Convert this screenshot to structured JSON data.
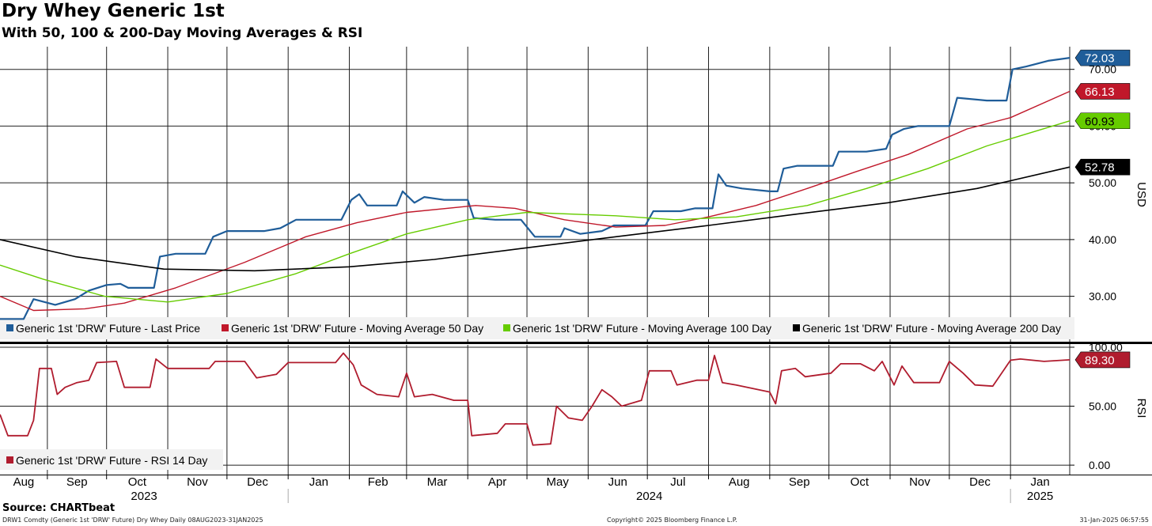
{
  "header": {
    "title": "Dry Whey Generic 1st",
    "subtitle": "With 50, 100 & 200-Day Moving Averages & RSI"
  },
  "footer": {
    "source": "Source: CHARTbeat",
    "left": "DRW1 Comdty (Generic 1st 'DRW' Future) Dry Whey  Daily 08AUG2023-31JAN2025",
    "center": "Copyright© 2025 Bloomberg Finance L.P.",
    "right": "31-Jan-2025 06:57:55"
  },
  "colors": {
    "last_price": "#1f5d99",
    "ma50": "#c0182a",
    "ma100": "#66cc00",
    "ma200": "#000000",
    "rsi": "#b01c2e"
  },
  "chart_data": [
    {
      "type": "line",
      "panel": "price",
      "ylabel": "USD",
      "ylim": [
        22,
        74
      ],
      "yticks": [
        "30.00",
        "40.00",
        "50.00",
        "60.00",
        "70.00"
      ],
      "grid": true,
      "x_months": [
        "Aug",
        "Sep",
        "Oct",
        "Nov",
        "Dec",
        "Jan",
        "Feb",
        "Mar",
        "Apr",
        "May",
        "Jun",
        "Jul",
        "Aug",
        "Sep",
        "Oct",
        "Nov",
        "Dec",
        "Jan"
      ],
      "x_years": [
        "2023",
        "2024",
        "2025"
      ],
      "legend": [
        "Generic 1st 'DRW' Future - Last Price",
        "Generic 1st 'DRW' Future - Moving Average 50 Day",
        "Generic 1st 'DRW' Future - Moving Average 100 Day",
        "Generic 1st 'DRW' Future - Moving Average 200 Day"
      ],
      "legend_position": "bottom",
      "series": [
        {
          "name": "Generic 1st 'DRW' Future - Last Price",
          "last_label": "72.03",
          "points": [
            [
              "2023-08-08",
              26.0
            ],
            [
              "2023-08-20",
              26.0
            ],
            [
              "2023-08-25",
              29.5
            ],
            [
              "2023-09-05",
              28.5
            ],
            [
              "2023-09-15",
              29.5
            ],
            [
              "2023-09-22",
              31.0
            ],
            [
              "2023-10-01",
              32.0
            ],
            [
              "2023-10-08",
              32.2
            ],
            [
              "2023-10-12",
              31.5
            ],
            [
              "2023-10-25",
              31.5
            ],
            [
              "2023-10-28",
              37.0
            ],
            [
              "2023-11-05",
              37.5
            ],
            [
              "2023-11-20",
              37.5
            ],
            [
              "2023-11-24",
              40.5
            ],
            [
              "2023-12-01",
              41.5
            ],
            [
              "2023-12-20",
              41.5
            ],
            [
              "2023-12-28",
              42.0
            ],
            [
              "2024-01-05",
              43.5
            ],
            [
              "2024-01-28",
              43.5
            ],
            [
              "2024-02-02",
              47.0
            ],
            [
              "2024-02-06",
              48.0
            ],
            [
              "2024-02-10",
              46.0
            ],
            [
              "2024-02-25",
              46.0
            ],
            [
              "2024-02-28",
              48.5
            ],
            [
              "2024-03-05",
              46.5
            ],
            [
              "2024-03-10",
              47.5
            ],
            [
              "2024-03-20",
              47.0
            ],
            [
              "2024-04-01",
              47.0
            ],
            [
              "2024-04-04",
              43.8
            ],
            [
              "2024-04-15",
              43.5
            ],
            [
              "2024-04-28",
              43.5
            ],
            [
              "2024-05-05",
              40.5
            ],
            [
              "2024-05-18",
              40.5
            ],
            [
              "2024-05-20",
              42.0
            ],
            [
              "2024-05-28",
              41.0
            ],
            [
              "2024-06-08",
              41.5
            ],
            [
              "2024-06-14",
              42.5
            ],
            [
              "2024-06-30",
              42.5
            ],
            [
              "2024-07-04",
              45.0
            ],
            [
              "2024-07-18",
              45.0
            ],
            [
              "2024-07-25",
              45.5
            ],
            [
              "2024-08-03",
              45.5
            ],
            [
              "2024-08-06",
              51.5
            ],
            [
              "2024-08-10",
              49.5
            ],
            [
              "2024-08-18",
              49.0
            ],
            [
              "2024-09-01",
              48.5
            ],
            [
              "2024-09-05",
              48.5
            ],
            [
              "2024-09-08",
              52.5
            ],
            [
              "2024-09-15",
              53.0
            ],
            [
              "2024-10-03",
              53.0
            ],
            [
              "2024-10-06",
              55.5
            ],
            [
              "2024-10-20",
              55.5
            ],
            [
              "2024-10-30",
              56.0
            ],
            [
              "2024-11-02",
              58.5
            ],
            [
              "2024-11-08",
              59.5
            ],
            [
              "2024-11-15",
              60.0
            ],
            [
              "2024-12-01",
              60.0
            ],
            [
              "2024-12-05",
              65.0
            ],
            [
              "2024-12-20",
              64.5
            ],
            [
              "2024-12-30",
              64.5
            ],
            [
              "2025-01-02",
              70.0
            ],
            [
              "2025-01-09",
              70.5
            ],
            [
              "2025-01-20",
              71.5
            ],
            [
              "2025-01-31",
              72.03
            ]
          ]
        },
        {
          "name": "Generic 1st 'DRW' Future - Moving Average 50 Day",
          "last_label": "66.13",
          "points": [
            [
              "2023-08-08",
              30.0
            ],
            [
              "2023-08-25",
              27.5
            ],
            [
              "2023-09-20",
              27.8
            ],
            [
              "2023-10-10",
              28.8
            ],
            [
              "2023-11-05",
              31.5
            ],
            [
              "2023-12-10",
              36.0
            ],
            [
              "2024-01-10",
              40.5
            ],
            [
              "2024-02-05",
              43.0
            ],
            [
              "2024-03-01",
              44.8
            ],
            [
              "2024-04-05",
              46.0
            ],
            [
              "2024-04-25",
              45.5
            ],
            [
              "2024-05-20",
              43.5
            ],
            [
              "2024-06-15",
              42.2
            ],
            [
              "2024-07-10",
              42.5
            ],
            [
              "2024-08-01",
              44.0
            ],
            [
              "2024-08-25",
              46.0
            ],
            [
              "2024-09-20",
              49.0
            ],
            [
              "2024-10-15",
              52.0
            ],
            [
              "2024-11-10",
              55.0
            ],
            [
              "2024-12-10",
              59.5
            ],
            [
              "2025-01-01",
              61.5
            ],
            [
              "2025-01-31",
              66.13
            ]
          ]
        },
        {
          "name": "Generic 1st 'DRW' Future - Moving Average 100 Day",
          "last_label": "60.93",
          "points": [
            [
              "2023-08-08",
              35.5
            ],
            [
              "2023-08-30",
              33.0
            ],
            [
              "2023-09-30",
              30.0
            ],
            [
              "2023-11-01",
              29.0
            ],
            [
              "2023-12-01",
              30.5
            ],
            [
              "2024-01-05",
              34.0
            ],
            [
              "2024-02-01",
              37.5
            ],
            [
              "2024-03-01",
              41.0
            ],
            [
              "2024-04-01",
              43.5
            ],
            [
              "2024-05-01",
              44.8
            ],
            [
              "2024-06-15",
              44.2
            ],
            [
              "2024-07-15",
              43.5
            ],
            [
              "2024-08-15",
              44.0
            ],
            [
              "2024-09-20",
              46.0
            ],
            [
              "2024-10-20",
              49.0
            ],
            [
              "2024-11-20",
              52.5
            ],
            [
              "2024-12-20",
              56.5
            ],
            [
              "2025-01-31",
              60.93
            ]
          ]
        },
        {
          "name": "Generic 1st 'DRW' Future - Moving Average 200 Day",
          "last_label": "52.78",
          "points": [
            [
              "2023-08-08",
              40.0
            ],
            [
              "2023-09-15",
              37.0
            ],
            [
              "2023-10-30",
              34.8
            ],
            [
              "2023-12-15",
              34.5
            ],
            [
              "2024-02-01",
              35.2
            ],
            [
              "2024-03-15",
              36.5
            ],
            [
              "2024-04-30",
              38.5
            ],
            [
              "2024-06-15",
              40.5
            ],
            [
              "2024-08-01",
              42.5
            ],
            [
              "2024-09-15",
              44.5
            ],
            [
              "2024-10-31",
              46.5
            ],
            [
              "2024-12-15",
              49.0
            ],
            [
              "2025-01-31",
              52.78
            ]
          ]
        }
      ]
    },
    {
      "type": "line",
      "panel": "rsi",
      "ylabel": "RSI",
      "ylim": [
        -8,
        102
      ],
      "yticks": [
        "0.00",
        "50.00",
        "100.00"
      ],
      "grid": true,
      "legend": [
        "Generic 1st 'DRW' Future - RSI 14 Day"
      ],
      "legend_position": "bottom-left",
      "series": [
        {
          "name": "Generic 1st 'DRW' Future - RSI 14 Day",
          "last_label": "89.30",
          "points": [
            [
              "2023-08-08",
              43
            ],
            [
              "2023-08-12",
              25
            ],
            [
              "2023-08-22",
              25
            ],
            [
              "2023-08-25",
              38
            ],
            [
              "2023-08-28",
              82
            ],
            [
              "2023-09-03",
              82
            ],
            [
              "2023-09-06",
              60
            ],
            [
              "2023-09-10",
              66
            ],
            [
              "2023-09-16",
              70
            ],
            [
              "2023-09-22",
              72
            ],
            [
              "2023-09-26",
              87
            ],
            [
              "2023-10-06",
              88
            ],
            [
              "2023-10-10",
              66
            ],
            [
              "2023-10-23",
              66
            ],
            [
              "2023-10-26",
              90
            ],
            [
              "2023-11-01",
              82
            ],
            [
              "2023-11-22",
              82
            ],
            [
              "2023-11-25",
              88
            ],
            [
              "2023-12-10",
              88
            ],
            [
              "2023-12-16",
              74
            ],
            [
              "2023-12-26",
              77
            ],
            [
              "2024-01-01",
              87
            ],
            [
              "2024-01-25",
              87
            ],
            [
              "2024-01-29",
              95
            ],
            [
              "2024-02-03",
              85
            ],
            [
              "2024-02-07",
              68
            ],
            [
              "2024-02-15",
              60
            ],
            [
              "2024-02-26",
              58
            ],
            [
              "2024-03-01",
              78
            ],
            [
              "2024-03-05",
              58
            ],
            [
              "2024-03-14",
              60
            ],
            [
              "2024-03-25",
              55
            ],
            [
              "2024-04-01",
              55
            ],
            [
              "2024-04-03",
              25
            ],
            [
              "2024-04-16",
              27
            ],
            [
              "2024-04-20",
              35
            ],
            [
              "2024-05-01",
              35
            ],
            [
              "2024-05-04",
              17
            ],
            [
              "2024-05-13",
              18
            ],
            [
              "2024-05-16",
              50
            ],
            [
              "2024-05-22",
              40
            ],
            [
              "2024-05-29",
              38
            ],
            [
              "2024-06-03",
              50
            ],
            [
              "2024-06-08",
              64
            ],
            [
              "2024-06-13",
              58
            ],
            [
              "2024-06-18",
              50
            ],
            [
              "2024-06-28",
              55
            ],
            [
              "2024-07-02",
              80
            ],
            [
              "2024-07-13",
              80
            ],
            [
              "2024-07-16",
              68
            ],
            [
              "2024-07-26",
              72
            ],
            [
              "2024-08-01",
              72
            ],
            [
              "2024-08-04",
              93
            ],
            [
              "2024-08-08",
              70
            ],
            [
              "2024-08-15",
              68
            ],
            [
              "2024-09-01",
              62
            ],
            [
              "2024-09-04",
              52
            ],
            [
              "2024-09-07",
              80
            ],
            [
              "2024-09-14",
              82
            ],
            [
              "2024-09-19",
              75
            ],
            [
              "2024-10-02",
              78
            ],
            [
              "2024-10-07",
              86
            ],
            [
              "2024-10-17",
              86
            ],
            [
              "2024-10-24",
              80
            ],
            [
              "2024-10-28",
              88
            ],
            [
              "2024-11-03",
              68
            ],
            [
              "2024-11-07",
              84
            ],
            [
              "2024-11-13",
              70
            ],
            [
              "2024-11-26",
              70
            ],
            [
              "2024-12-01",
              88
            ],
            [
              "2024-12-08",
              78
            ],
            [
              "2024-12-14",
              68
            ],
            [
              "2024-12-23",
              67
            ],
            [
              "2025-01-01",
              89
            ],
            [
              "2025-01-06",
              90
            ],
            [
              "2025-01-18",
              88
            ],
            [
              "2025-01-31",
              89.3
            ]
          ]
        }
      ]
    }
  ]
}
